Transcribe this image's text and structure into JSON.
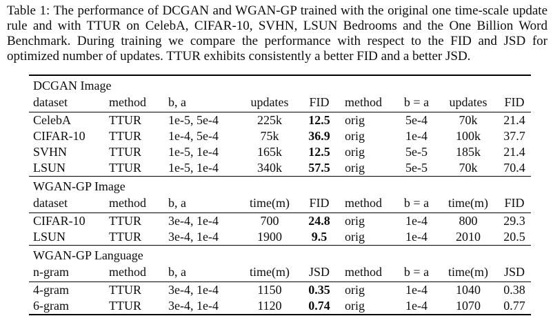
{
  "caption": {
    "text": "Table 1: The performance of DCGAN and WGAN-GP trained with the original one time-scale update rule and with TTUR on CelebA, CIFAR-10, SVHN, LSUN Bedrooms and the One Billion Word Benchmark. During training we compare the performance with respect to the FID and JSD for optimized number of updates. TTUR exhibits consistently a better FID and a better JSD."
  },
  "colors": {
    "text": "#0d0d0d",
    "rule": "#000000",
    "background": "#ffffff"
  },
  "table": {
    "column_alignments": [
      "left",
      "left",
      "left",
      "center",
      "center",
      "left",
      "center",
      "center",
      "center"
    ],
    "sections": [
      {
        "title": "DCGAN Image",
        "headers": [
          "dataset",
          "method",
          "b, a",
          "updates",
          "FID",
          "method",
          "b = a",
          "updates",
          "FID"
        ],
        "bold_columns": [
          4
        ],
        "rows": [
          [
            "CelebA",
            "TTUR",
            "1e-5, 5e-4",
            "225k",
            "12.5",
            "orig",
            "5e-4",
            "70k",
            "21.4"
          ],
          [
            "CIFAR-10",
            "TTUR",
            "1e-4, 5e-4",
            "75k",
            "36.9",
            "orig",
            "1e-4",
            "100k",
            "37.7"
          ],
          [
            "SVHN",
            "TTUR",
            "1e-5, 1e-4",
            "165k",
            "12.5",
            "orig",
            "5e-5",
            "185k",
            "21.4"
          ],
          [
            "LSUN",
            "TTUR",
            "1e-5, 1e-4",
            "340k",
            "57.5",
            "orig",
            "5e-5",
            "70k",
            "70.4"
          ]
        ]
      },
      {
        "title": "WGAN-GP Image",
        "headers": [
          "dataset",
          "method",
          "b, a",
          "time(m)",
          "FID",
          "method",
          "b = a",
          "time(m)",
          "FID"
        ],
        "bold_columns": [
          4
        ],
        "rows": [
          [
            "CIFAR-10",
            "TTUR",
            "3e-4, 1e-4",
            "700",
            "24.8",
            "orig",
            "1e-4",
            "800",
            "29.3"
          ],
          [
            "LSUN",
            "TTUR",
            "3e-4, 1e-4",
            "1900",
            "9.5",
            "orig",
            "1e-4",
            "2010",
            "20.5"
          ]
        ]
      },
      {
        "title": "WGAN-GP Language",
        "headers": [
          "n-gram",
          "method",
          "b, a",
          "time(m)",
          "JSD",
          "method",
          "b = a",
          "time(m)",
          "JSD"
        ],
        "bold_columns": [
          4
        ],
        "rows": [
          [
            "4-gram",
            "TTUR",
            "3e-4, 1e-4",
            "1150",
            "0.35",
            "orig",
            "1e-4",
            "1040",
            "0.38"
          ],
          [
            "6-gram",
            "TTUR",
            "3e-4, 1e-4",
            "1120",
            "0.74",
            "orig",
            "1e-4",
            "1070",
            "0.77"
          ]
        ]
      }
    ]
  }
}
